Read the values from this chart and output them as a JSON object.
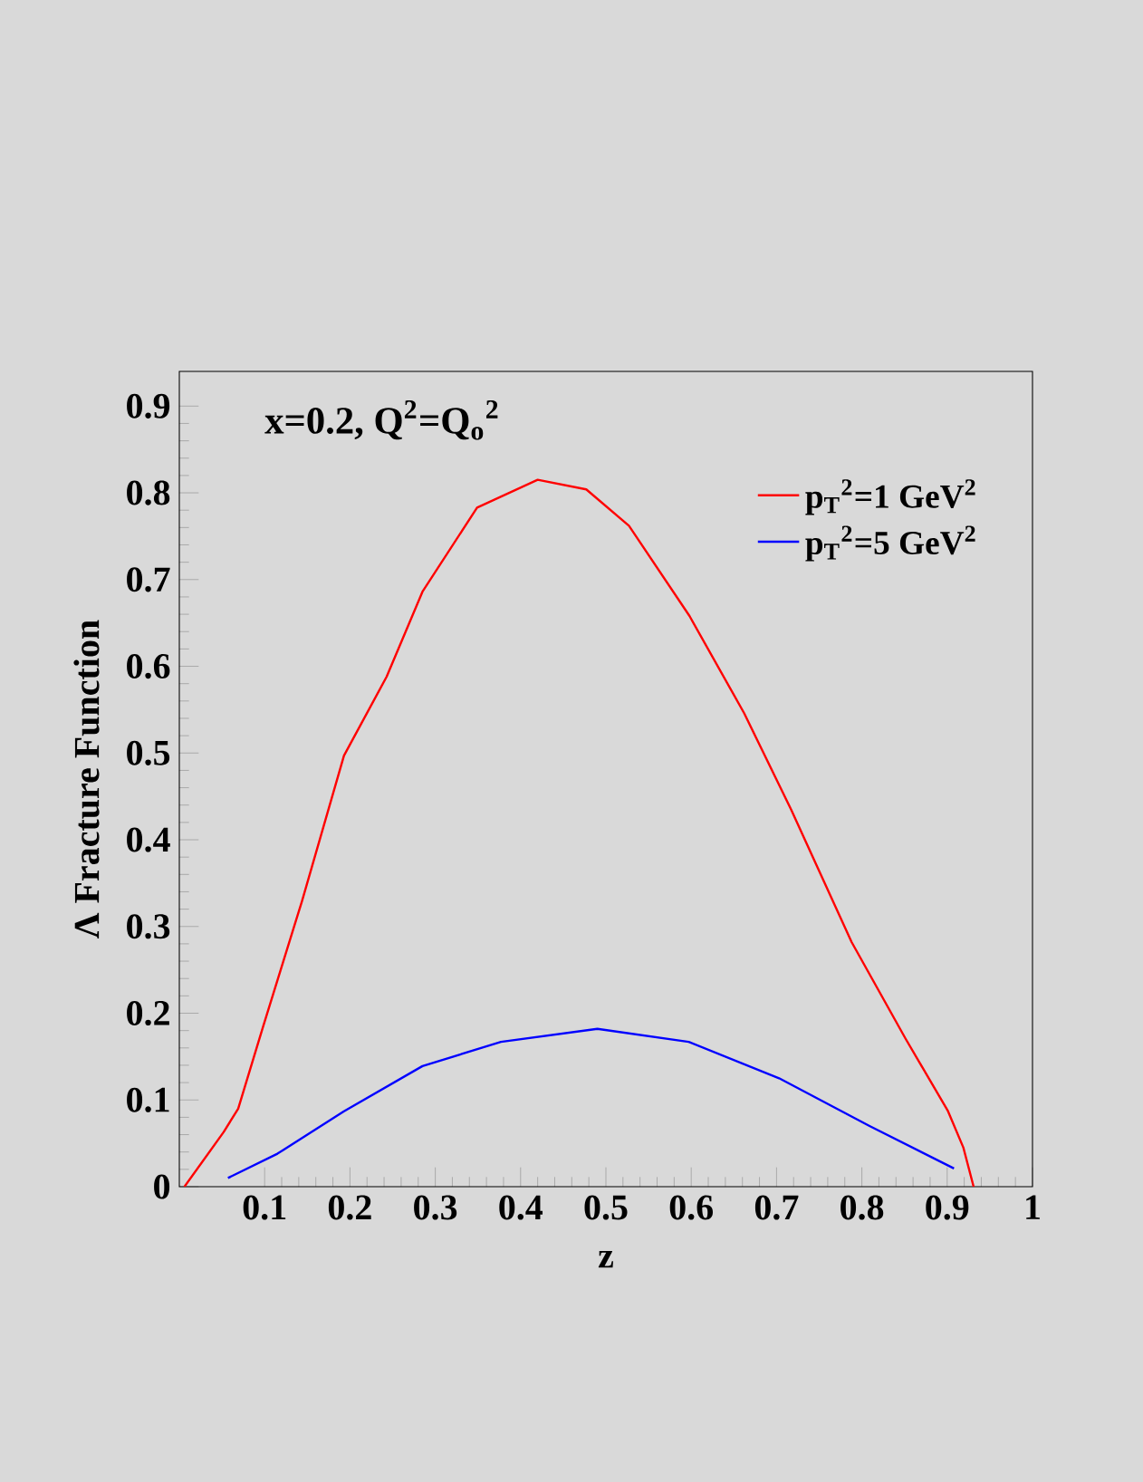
{
  "chart_data": {
    "type": "line",
    "xlabel": "z",
    "ylabel": "Λ Fracture Function",
    "annotations": [
      "x=0.2, Q$^{2}$=Q$_{o}$$^{2}$"
    ],
    "xlim": [
      0,
      1
    ],
    "ylim": [
      0,
      0.94
    ],
    "xticks": [
      0.1,
      0.2,
      0.3,
      0.4,
      0.5,
      0.6,
      0.7,
      0.8,
      0.9,
      1
    ],
    "yticks": [
      0,
      0.1,
      0.2,
      0.3,
      0.4,
      0.5,
      0.6,
      0.7,
      0.8,
      0.9
    ],
    "legend": "top right",
    "marker": "none",
    "line_style": "solid",
    "grid": false,
    "series": [
      {
        "name": "p$_{T}$$^{2}$=1 GeV$^{2}$",
        "color": "#ff0000",
        "x": [
          0.006,
          0.052,
          0.069,
          0.098,
          0.144,
          0.193,
          0.243,
          0.285,
          0.349,
          0.42,
          0.477,
          0.527,
          0.598,
          0.662,
          0.717,
          0.788,
          0.851,
          0.901,
          0.919,
          0.931
        ],
        "values": [
          0,
          0.063,
          0.09,
          0.184,
          0.33,
          0.497,
          0.588,
          0.686,
          0.783,
          0.815,
          0.804,
          0.762,
          0.658,
          0.546,
          0.435,
          0.282,
          0.171,
          0.087,
          0.045,
          0
        ]
      },
      {
        "name": "p$_{T}$$^{2}$=5 GeV$^{2}$",
        "color": "#0000ff",
        "x": [
          0.057,
          0.115,
          0.193,
          0.285,
          0.377,
          0.49,
          0.597,
          0.703,
          0.809,
          0.908
        ],
        "values": [
          0.01,
          0.038,
          0.087,
          0.139,
          0.167,
          0.182,
          0.167,
          0.125,
          0.07,
          0.021
        ]
      }
    ]
  }
}
